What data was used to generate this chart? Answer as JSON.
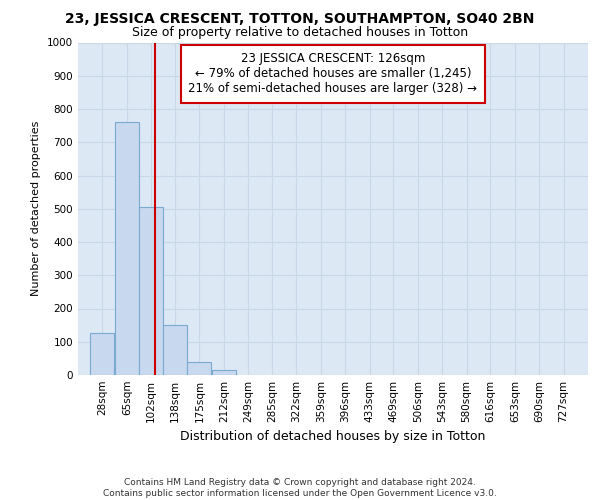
{
  "title1": "23, JESSICA CRESCENT, TOTTON, SOUTHAMPTON, SO40 2BN",
  "title2": "Size of property relative to detached houses in Totton",
  "xlabel": "Distribution of detached houses by size in Totton",
  "ylabel": "Number of detached properties",
  "bar_color": "#c8d8ee",
  "bar_edge_color": "#7aaad0",
  "bin_edges": [
    28,
    65,
    102,
    138,
    175,
    212,
    249,
    285,
    322,
    359,
    396,
    433,
    469,
    506,
    543,
    580,
    616,
    653,
    690,
    727,
    764
  ],
  "bar_heights": [
    125,
    760,
    505,
    150,
    40,
    15,
    0,
    0,
    0,
    0,
    0,
    0,
    0,
    0,
    0,
    0,
    0,
    0,
    0,
    0
  ],
  "property_size": 126,
  "vline_color": "#cc0000",
  "annotation_line1": "23 JESSICA CRESCENT: 126sqm",
  "annotation_line2": "← 79% of detached houses are smaller (1,245)",
  "annotation_line3": "21% of semi-detached houses are larger (328) →",
  "annotation_box_color": "#ffffff",
  "annotation_box_edge_color": "#cc0000",
  "ylim": [
    0,
    1000
  ],
  "yticks": [
    0,
    100,
    200,
    300,
    400,
    500,
    600,
    700,
    800,
    900,
    1000
  ],
  "grid_color": "#c8d8e8",
  "background_color": "#dce8f4",
  "footer_text": "Contains HM Land Registry data © Crown copyright and database right 2024.\nContains public sector information licensed under the Open Government Licence v3.0.",
  "title1_fontsize": 10,
  "title2_fontsize": 9,
  "xlabel_fontsize": 9,
  "ylabel_fontsize": 8,
  "tick_fontsize": 7.5,
  "annotation_fontsize": 8.5,
  "footer_fontsize": 6.5
}
